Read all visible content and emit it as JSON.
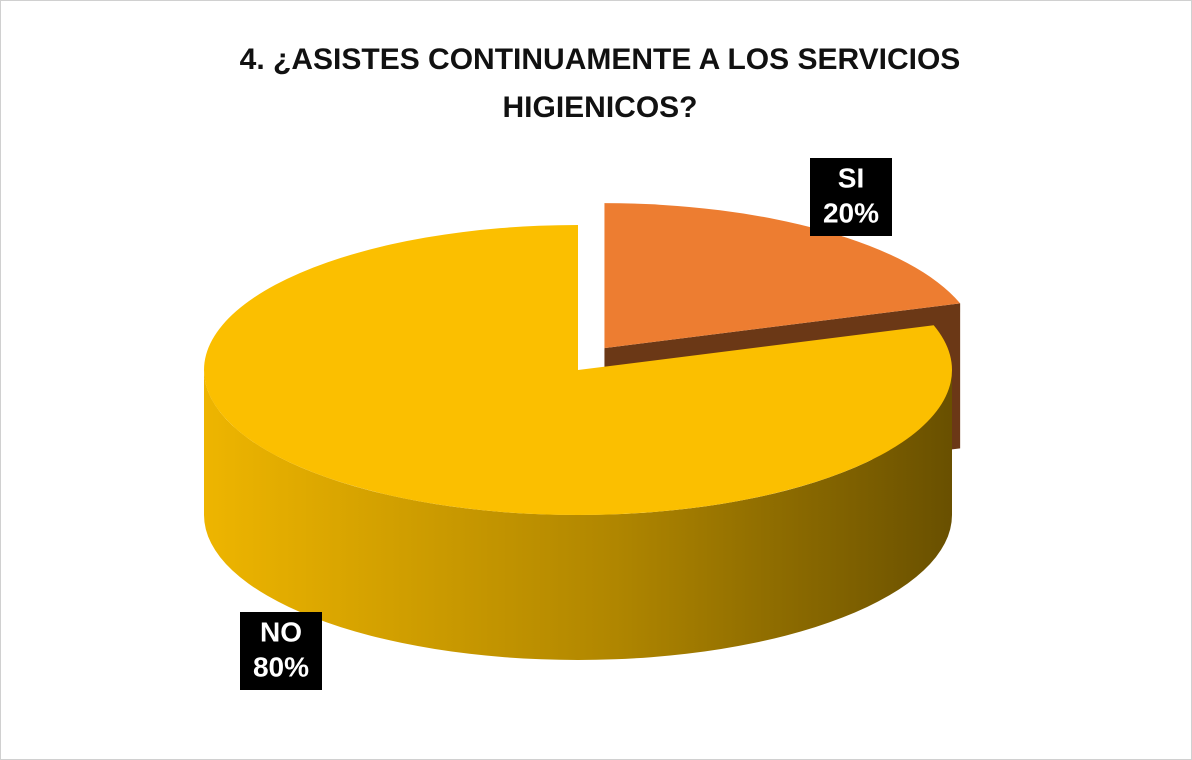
{
  "chart_data": {
    "type": "pie3d",
    "title": "4. ¿ASISTES CONTINUAMENTE A LOS SERVICIOS HIGIENICOS?",
    "categories": [
      "SI",
      "NO"
    ],
    "values": [
      20,
      80
    ],
    "value_labels": [
      "20%",
      "80%"
    ],
    "colors": [
      "#ed7d31",
      "#fbbf00"
    ],
    "exploded": [
      true,
      false
    ]
  }
}
